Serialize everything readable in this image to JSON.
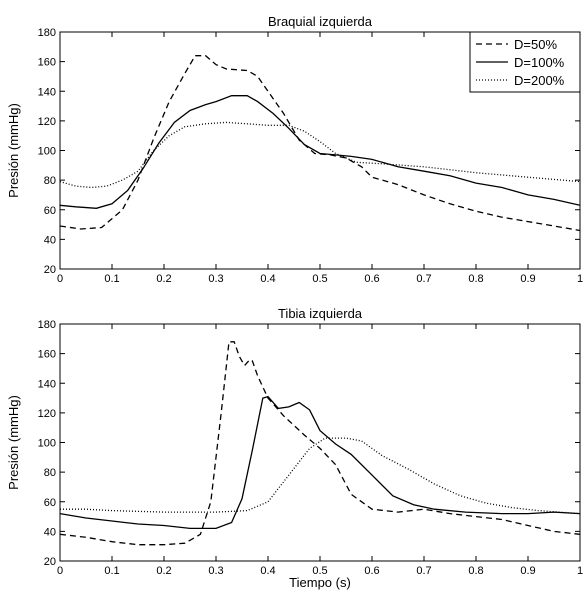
{
  "chart_data": [
    {
      "type": "line",
      "title": "Braquial izquierda",
      "xlabel": "",
      "ylabel": "Presión (mmHg)",
      "xlim": [
        0,
        1
      ],
      "ylim": [
        20,
        180
      ],
      "xticks": [
        "0",
        "0.1",
        "0.2",
        "0.3",
        "0.4",
        "0.5",
        "0.6",
        "0.7",
        "0.8",
        "0.9",
        "1"
      ],
      "yticks": [
        "20",
        "40",
        "60",
        "80",
        "100",
        "120",
        "140",
        "160",
        "180"
      ],
      "legend": {
        "placement": "top-right",
        "entries": [
          "D=50%",
          "D=100%",
          "D=200%"
        ]
      },
      "series": [
        {
          "name": "D=50%",
          "style": "dashed",
          "points": [
            [
              0,
              49
            ],
            [
              0.04,
              47
            ],
            [
              0.08,
              48
            ],
            [
              0.12,
              60
            ],
            [
              0.15,
              80
            ],
            [
              0.18,
              108
            ],
            [
              0.21,
              133
            ],
            [
              0.24,
              152
            ],
            [
              0.26,
              164
            ],
            [
              0.28,
              164
            ],
            [
              0.3,
              158
            ],
            [
              0.32,
              155
            ],
            [
              0.36,
              154
            ],
            [
              0.38,
              150
            ],
            [
              0.4,
              140
            ],
            [
              0.43,
              125
            ],
            [
              0.46,
              107
            ],
            [
              0.49,
              98
            ],
            [
              0.52,
              97
            ],
            [
              0.55,
              95
            ],
            [
              0.58,
              89
            ],
            [
              0.6,
              82
            ],
            [
              0.65,
              77
            ],
            [
              0.7,
              70
            ],
            [
              0.75,
              64
            ],
            [
              0.8,
              59
            ],
            [
              0.85,
              55
            ],
            [
              0.9,
              52
            ],
            [
              0.95,
              49
            ],
            [
              1.0,
              46
            ]
          ]
        },
        {
          "name": "D=100%",
          "style": "solid",
          "points": [
            [
              0,
              63
            ],
            [
              0.03,
              62
            ],
            [
              0.07,
              61
            ],
            [
              0.1,
              64
            ],
            [
              0.13,
              73
            ],
            [
              0.16,
              88
            ],
            [
              0.19,
              105
            ],
            [
              0.22,
              119
            ],
            [
              0.25,
              127
            ],
            [
              0.28,
              131
            ],
            [
              0.3,
              133
            ],
            [
              0.33,
              137
            ],
            [
              0.36,
              137
            ],
            [
              0.38,
              133
            ],
            [
              0.41,
              125
            ],
            [
              0.44,
              115
            ],
            [
              0.47,
              104
            ],
            [
              0.5,
              98
            ],
            [
              0.53,
              97
            ],
            [
              0.56,
              96
            ],
            [
              0.6,
              94
            ],
            [
              0.65,
              89
            ],
            [
              0.7,
              86
            ],
            [
              0.75,
              83
            ],
            [
              0.8,
              78
            ],
            [
              0.85,
              75
            ],
            [
              0.9,
              70
            ],
            [
              0.95,
              67
            ],
            [
              1.0,
              63
            ]
          ]
        },
        {
          "name": "D=200%",
          "style": "dotted",
          "points": [
            [
              0,
              79
            ],
            [
              0.03,
              76
            ],
            [
              0.06,
              75
            ],
            [
              0.09,
              76
            ],
            [
              0.12,
              80
            ],
            [
              0.15,
              86
            ],
            [
              0.18,
              100
            ],
            [
              0.21,
              110
            ],
            [
              0.24,
              116
            ],
            [
              0.28,
              118
            ],
            [
              0.32,
              119
            ],
            [
              0.36,
              118
            ],
            [
              0.4,
              117
            ],
            [
              0.44,
              117
            ],
            [
              0.47,
              113
            ],
            [
              0.5,
              106
            ],
            [
              0.53,
              98
            ],
            [
              0.57,
              92
            ],
            [
              0.62,
              91
            ],
            [
              0.7,
              89
            ],
            [
              0.8,
              85
            ],
            [
              0.9,
              82
            ],
            [
              1.0,
              79
            ]
          ]
        }
      ]
    },
    {
      "type": "line",
      "title": "Tibia izquierda",
      "xlabel": "Tiempo (s)",
      "ylabel": "Presión (mmHg)",
      "xlim": [
        0,
        1
      ],
      "ylim": [
        20,
        180
      ],
      "xticks": [
        "0",
        "0.1",
        "0.2",
        "0.3",
        "0.4",
        "0.5",
        "0.6",
        "0.7",
        "0.8",
        "0.9",
        "1"
      ],
      "yticks": [
        "20",
        "40",
        "60",
        "80",
        "100",
        "120",
        "140",
        "160",
        "180"
      ],
      "series": [
        {
          "name": "D=50%",
          "style": "dashed",
          "points": [
            [
              0,
              38
            ],
            [
              0.05,
              36
            ],
            [
              0.1,
              33
            ],
            [
              0.15,
              31
            ],
            [
              0.2,
              31
            ],
            [
              0.24,
              32
            ],
            [
              0.27,
              38
            ],
            [
              0.29,
              60
            ],
            [
              0.31,
              120
            ],
            [
              0.325,
              168
            ],
            [
              0.335,
              168
            ],
            [
              0.345,
              158
            ],
            [
              0.355,
              152
            ],
            [
              0.365,
              156
            ],
            [
              0.37,
              155
            ],
            [
              0.38,
              145
            ],
            [
              0.4,
              130
            ],
            [
              0.43,
              118
            ],
            [
              0.47,
              105
            ],
            [
              0.5,
              96
            ],
            [
              0.53,
              85
            ],
            [
              0.56,
              65
            ],
            [
              0.6,
              55
            ],
            [
              0.65,
              53
            ],
            [
              0.7,
              55
            ],
            [
              0.75,
              52
            ],
            [
              0.8,
              50
            ],
            [
              0.85,
              48
            ],
            [
              0.9,
              44
            ],
            [
              0.95,
              40
            ],
            [
              1.0,
              38
            ]
          ]
        },
        {
          "name": "D=100%",
          "style": "solid",
          "points": [
            [
              0,
              52
            ],
            [
              0.05,
              49
            ],
            [
              0.1,
              47
            ],
            [
              0.15,
              45
            ],
            [
              0.2,
              44
            ],
            [
              0.25,
              42
            ],
            [
              0.3,
              42
            ],
            [
              0.33,
              46
            ],
            [
              0.35,
              62
            ],
            [
              0.37,
              95
            ],
            [
              0.39,
              130
            ],
            [
              0.4,
              131
            ],
            [
              0.42,
              123
            ],
            [
              0.44,
              124
            ],
            [
              0.46,
              127
            ],
            [
              0.48,
              122
            ],
            [
              0.5,
              108
            ],
            [
              0.53,
              99
            ],
            [
              0.56,
              92
            ],
            [
              0.6,
              78
            ],
            [
              0.64,
              64
            ],
            [
              0.68,
              58
            ],
            [
              0.72,
              55
            ],
            [
              0.78,
              53
            ],
            [
              0.85,
              52
            ],
            [
              0.9,
              52
            ],
            [
              0.95,
              53
            ],
            [
              1.0,
              52
            ]
          ]
        },
        {
          "name": "D=200%",
          "style": "dotted",
          "points": [
            [
              0,
              55
            ],
            [
              0.05,
              55
            ],
            [
              0.1,
              54
            ],
            [
              0.2,
              53
            ],
            [
              0.3,
              53
            ],
            [
              0.36,
              54
            ],
            [
              0.4,
              60
            ],
            [
              0.44,
              78
            ],
            [
              0.48,
              96
            ],
            [
              0.51,
              103
            ],
            [
              0.55,
              103
            ],
            [
              0.58,
              101
            ],
            [
              0.62,
              91
            ],
            [
              0.67,
              82
            ],
            [
              0.72,
              72
            ],
            [
              0.77,
              64
            ],
            [
              0.82,
              59
            ],
            [
              0.87,
              56
            ],
            [
              0.92,
              54
            ],
            [
              0.96,
              53
            ],
            [
              1.0,
              52
            ]
          ]
        }
      ]
    }
  ]
}
